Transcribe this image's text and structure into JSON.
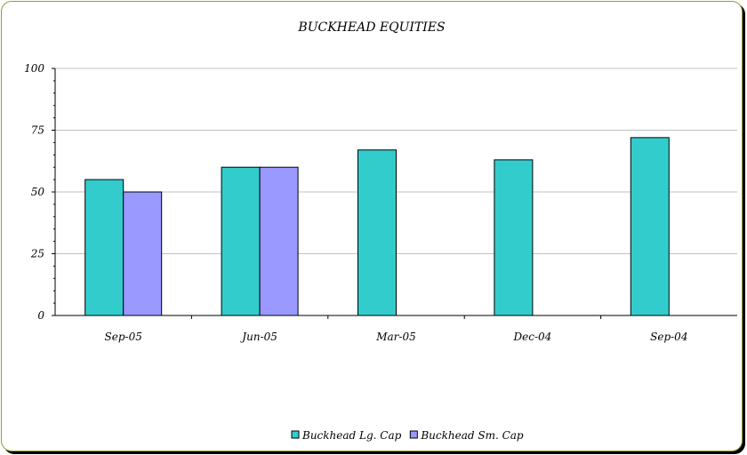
{
  "chart_data": {
    "type": "bar",
    "title": "BUCKHEAD EQUITIES",
    "xlabel": "",
    "ylabel": "",
    "ylim": [
      0,
      100
    ],
    "yticks": [
      0,
      25,
      50,
      75,
      100
    ],
    "grid": true,
    "legend_position": "bottom",
    "categories": [
      "Sep-05",
      "Jun-05",
      "Mar-05",
      "Dec-04",
      "Sep-04"
    ],
    "series": [
      {
        "name": "Buckhead Lg. Cap",
        "color": "#33cccc",
        "values": [
          55,
          60,
          67,
          63,
          72
        ]
      },
      {
        "name": "Buckhead Sm. Cap",
        "color": "#9999ff",
        "values": [
          50,
          60,
          null,
          null,
          null
        ]
      }
    ]
  }
}
